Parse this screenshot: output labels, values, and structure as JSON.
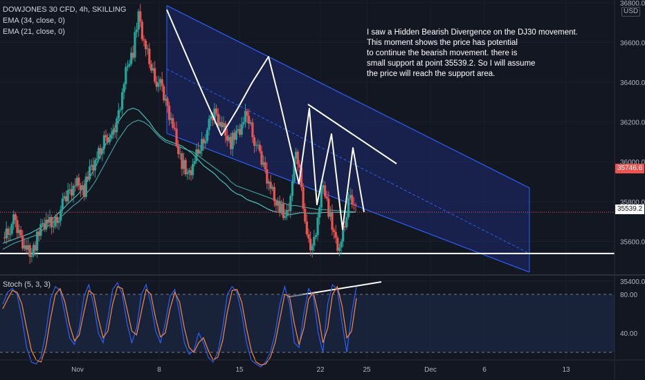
{
  "legend": {
    "symbol": "DOWJONES 30 CFD, 4h, SKILLING",
    "ema34": "EMA (34, close, 0)",
    "ema21": "EMA (21, close, 0)"
  },
  "annotation": [
    "I saw a Hidden Bearish Divergence on the DJ30 movement.",
    "This moment shows the price has potential",
    "to continue the bearish movement. there is",
    "small support at point 35539.2. So I will assume",
    "the price will reach the support area."
  ],
  "stoch_label": "Stoch (5, 3, 3)",
  "currency": "USD",
  "current_price_tag": "35746.6",
  "support_tag": "35539.2",
  "colors": {
    "background": "#131722",
    "up": "#26a69a",
    "down": "#ef5350",
    "channel": "#2962ff",
    "ema": "#4dd0c8",
    "stoch_k": "#2962ff",
    "stoch_d": "#ff8a3d",
    "drawing": "#ffffff"
  },
  "chart_data": [
    {
      "type": "candlestick",
      "title": "DOWJONES 30 CFD, 4h, SKILLING",
      "ylim": [
        35250,
        36800
      ],
      "y_ticks": [
        36800.0,
        36600.0,
        36400.0,
        36200.0,
        36000.0,
        35800.0,
        35600.0,
        35400.0
      ],
      "x_ticks": [
        "Nov",
        "8",
        "15",
        "22",
        "25",
        "Dec",
        "6",
        "13"
      ],
      "support_level": 35539.2,
      "current_price": 35746.6,
      "close_path": [
        35620,
        35660,
        35700,
        35640,
        35580,
        35540,
        35590,
        35660,
        35700,
        35680,
        35720,
        35780,
        35840,
        35880,
        35900,
        35860,
        35950,
        36000,
        36050,
        36150,
        36100,
        36200,
        36350,
        36500,
        36560,
        36730,
        36600,
        36500,
        36430,
        36380,
        36300,
        36220,
        36100,
        36000,
        35920,
        35980,
        36050,
        36120,
        36180,
        36250,
        36200,
        36150,
        36100,
        36130,
        36180,
        36240,
        36150,
        36050,
        35980,
        35900,
        35820,
        35780,
        35700,
        35820,
        36060,
        35900,
        35600,
        35560,
        35720,
        35900,
        35760,
        35620,
        35560,
        35680,
        35860,
        35746.6
      ],
      "series": [
        {
          "name": "EMA (34, close, 0)",
          "values": [
            35560,
            35575,
            35590,
            35600,
            35610,
            35620,
            35630,
            35650,
            35670,
            35690,
            35710,
            35730,
            35755,
            35780,
            35800,
            35830,
            35860,
            35900,
            35950,
            36000,
            36050,
            36100,
            36140,
            36180,
            36200,
            36210,
            36200,
            36180,
            36150,
            36120,
            36100,
            36090,
            36080,
            36070,
            36060,
            36050,
            36030,
            36010,
            35990,
            35970,
            35950,
            35930,
            35900,
            35880,
            35870,
            35860,
            35850,
            35840,
            35830,
            35820,
            35810,
            35800,
            35790,
            35780,
            35780,
            35775,
            35770,
            35765,
            35760,
            35760,
            35758,
            35756,
            35754,
            35752,
            35750,
            35748
          ]
        },
        {
          "name": "EMA (21, close, 0)",
          "values": [
            35590,
            35600,
            35610,
            35620,
            35630,
            35640,
            35655,
            35670,
            35690,
            35710,
            35735,
            35760,
            35790,
            35815,
            35840,
            35880,
            35920,
            35970,
            36030,
            36090,
            36140,
            36190,
            36230,
            36260,
            36270,
            36260,
            36230,
            36200,
            36160,
            36130,
            36110,
            36100,
            36090,
            36080,
            36060,
            36040,
            36010,
            35980,
            35960,
            35940,
            35910,
            35890,
            35860,
            35840,
            35830,
            35810,
            35800,
            35790,
            35775,
            35760,
            35750,
            35745,
            35740,
            35735,
            35740,
            35745,
            35742,
            35740,
            35742,
            35745,
            35746,
            35746,
            35746,
            35746,
            35746,
            35747
          ]
        }
      ]
    },
    {
      "type": "line",
      "title": "Stoch (5, 3, 3)",
      "ylim": [
        0,
        100
      ],
      "y_ticks": [
        80.0,
        40.0
      ],
      "bands": [
        80,
        20
      ],
      "series": [
        {
          "name": "%K",
          "values": [
            70,
            82,
            86,
            80,
            55,
            25,
            10,
            8,
            15,
            40,
            75,
            88,
            84,
            60,
            35,
            28,
            45,
            78,
            90,
            70,
            40,
            30,
            55,
            85,
            92,
            80,
            50,
            30,
            45,
            80,
            90,
            70,
            42,
            30,
            50,
            78,
            85,
            60,
            30,
            18,
            22,
            40,
            30,
            15,
            10,
            20,
            45,
            80,
            88,
            82,
            60,
            30,
            12,
            8,
            5,
            10,
            20,
            40,
            70,
            88,
            70,
            30,
            25,
            60,
            86,
            78,
            40,
            20,
            70,
            90,
            85,
            50,
            20,
            60,
            88
          ]
        },
        {
          "name": "%D",
          "values": [
            65,
            75,
            84,
            82,
            70,
            45,
            22,
            12,
            10,
            25,
            55,
            80,
            86,
            72,
            48,
            32,
            38,
            62,
            84,
            80,
            55,
            35,
            42,
            70,
            88,
            86,
            65,
            42,
            38,
            62,
            85,
            80,
            55,
            36,
            40,
            65,
            82,
            72,
            45,
            25,
            20,
            30,
            35,
            22,
            12,
            15,
            32,
            62,
            84,
            85,
            72,
            45,
            22,
            10,
            7,
            8,
            15,
            30,
            55,
            80,
            78,
            50,
            28,
            45,
            75,
            82,
            60,
            30,
            45,
            80,
            88,
            68,
            35,
            42,
            76
          ]
        }
      ]
    }
  ]
}
